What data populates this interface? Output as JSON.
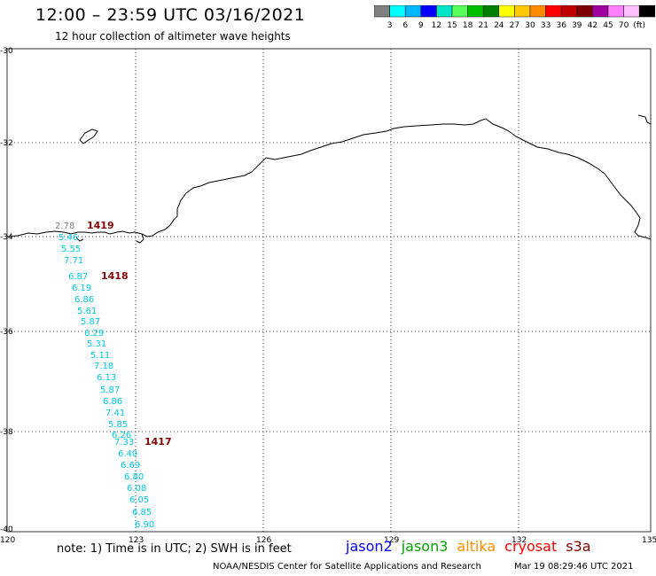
{
  "header": {
    "title": "12:00 – 23:59 UTC 03/16/2021",
    "subtitle": "12 hour collection of altimeter wave heights"
  },
  "colorbar": {
    "colors": [
      "#808080",
      "#00ffff",
      "#00b8ff",
      "#0000ff",
      "#00e6c8",
      "#58ff58",
      "#00c000",
      "#008000",
      "#ffff00",
      "#ffc800",
      "#ff8c00",
      "#ff0000",
      "#c00000",
      "#800000",
      "#a000a0",
      "#ff80ff",
      "#ffc0ff",
      "#000000"
    ],
    "labels": [
      "3",
      "6",
      "9",
      "12",
      "15",
      "18",
      "21",
      "24",
      "27",
      "30",
      "33",
      "36",
      "39",
      "42",
      "45",
      "70",
      "(ft)"
    ]
  },
  "axes": {
    "lon_labels": [
      "120",
      "123",
      "126",
      "129",
      "132",
      "135"
    ],
    "lat_labels": [
      "-30",
      "-32",
      "-34",
      "-36",
      "-38",
      "-40"
    ]
  },
  "track": {
    "color": "#00c8e6",
    "wave_heights": [
      "2.78",
      "5.46",
      "5.55",
      "7.71",
      "6.87",
      "6.19",
      "6.86",
      "5.61",
      "5.87",
      "6.29",
      "5.31",
      "5.11",
      "7.18",
      "6.13",
      "5.87",
      "6.86",
      "7.41",
      "5.85",
      "6.26",
      "7.33",
      "6.40",
      "6.69",
      "6.80",
      "6.08",
      "6.05",
      "6.85",
      "6.90"
    ],
    "time_labels": [
      "1419",
      "1418",
      "1417"
    ],
    "time_color": "#800000"
  },
  "footer": {
    "note": "note: 1) Time is in UTC; 2) SWH is in feet",
    "legend": [
      {
        "name": "jason2",
        "color": "#0000ff"
      },
      {
        "name": "jason3",
        "color": "#00a000"
      },
      {
        "name": "altika",
        "color": "#ff8c00"
      },
      {
        "name": "cryosat",
        "color": "#ff0000"
      },
      {
        "name": "s3a",
        "color": "#800000"
      }
    ],
    "credit": "NOAA/NESDIS Center for Satellite Applications and Research",
    "timestamp": "Mar 19 08:29:46 UTC 2021"
  }
}
